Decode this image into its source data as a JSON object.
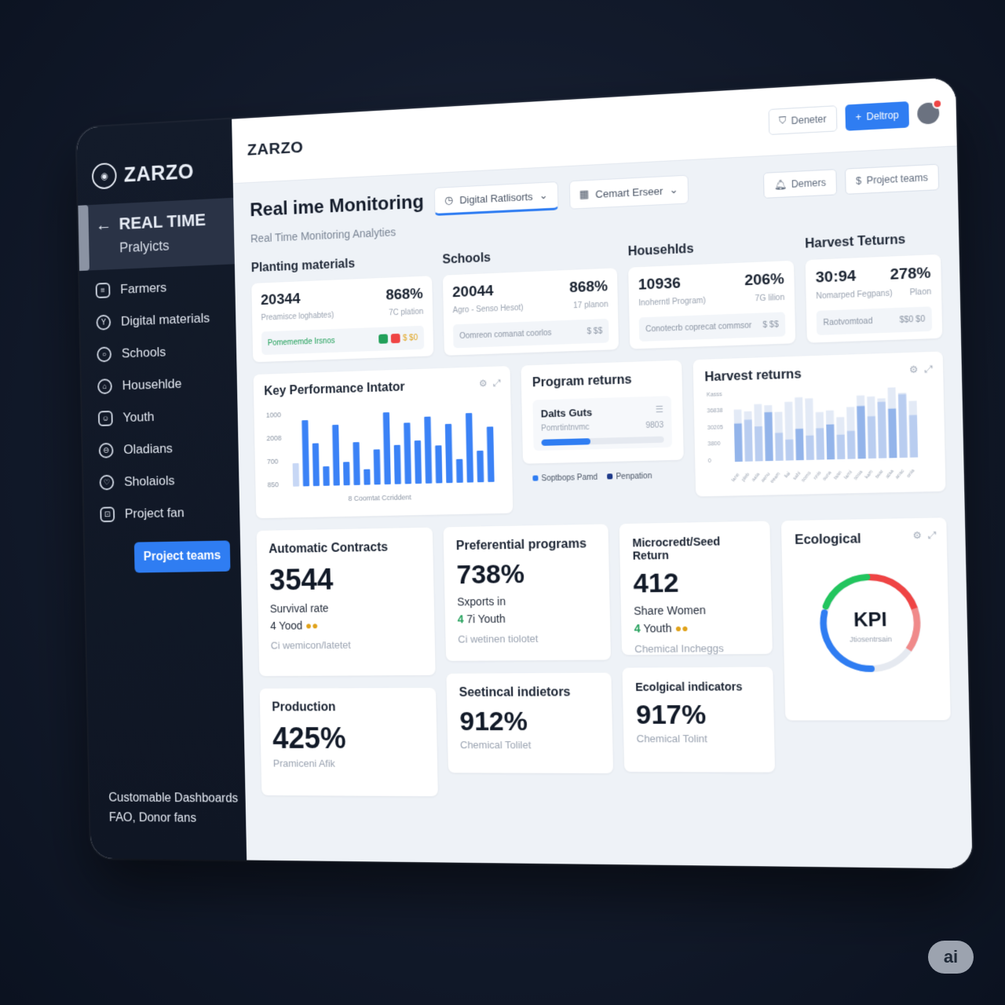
{
  "sidebar": {
    "brand": "ZARZO",
    "active": {
      "title": "REAL TIME",
      "subtitle": "Pralyicts"
    },
    "items": [
      {
        "label": "Farmers",
        "icon": "farmer-icon"
      },
      {
        "label": "Digital materials",
        "icon": "digital-icon"
      },
      {
        "label": "Schools",
        "icon": "school-icon"
      },
      {
        "label": "Househlde",
        "icon": "household-icon"
      },
      {
        "label": "Youth",
        "icon": "youth-icon"
      },
      {
        "label": "Oladians",
        "icon": "oladians-icon"
      },
      {
        "label": "Sholaiols",
        "icon": "heart-icon"
      },
      {
        "label": "Project fan",
        "icon": "project-icon"
      }
    ],
    "team_button": "Project teams",
    "footer": {
      "line1": "Customable Dashboards",
      "line2": "FAO, Donor fans"
    }
  },
  "topbar": {
    "brand": "ZARZO",
    "ghost_button": "Deneter",
    "primary_button": "Deltrop"
  },
  "header": {
    "title": "Real ime Monitoring",
    "dropdown1": "Digital Ratlisorts",
    "dropdown2": "Cemart Erseer",
    "action1": "Demers",
    "action2": "Project teams",
    "subtitle": "Real Time Monitoring Analyties"
  },
  "sections": [
    "Planting materials",
    "Schools",
    "Househlds",
    "Harvest Teturns"
  ],
  "stats": [
    {
      "value": "20344",
      "pct": "868%",
      "label": "Preamisce loghabtes)",
      "sub": "7C plation",
      "footer": "Pomememde Irsnos",
      "footer_right": "$ $0"
    },
    {
      "value": "20044",
      "pct": "868%",
      "label": "Agro - Senso Hesot)",
      "sub": "17 planon",
      "footer": "Oomreon comanat coorlos",
      "footer_right": "$ $$"
    },
    {
      "value": "10936",
      "pct": "206%",
      "label": "Inoherntl Program)",
      "sub": "7G lilion",
      "footer": "Conotecrb coprecat commsor",
      "footer_right": "$ $$"
    },
    {
      "value": "30:94",
      "pct": "278%",
      "label": "Nomarped Fegpans)",
      "sub": "Plaon",
      "footer": "Raotvomtoad",
      "footer_right": "$$0 $0"
    }
  ],
  "kpi": {
    "title": "Key Performance Intator",
    "caption": "8 Coomtat Ccriddent"
  },
  "program": {
    "title": "Program returns",
    "inner_title": "Dalts Guts",
    "inner_sub": "Pomrtintnvmc",
    "inner_val": "9803",
    "progress": 0.4,
    "legend1": "Soptbops Pamd",
    "legend2": "Penpation"
  },
  "harvest": {
    "title": "Harvest returns"
  },
  "cards": {
    "auto": {
      "title": "Automatic Contracts",
      "value": "3544",
      "line1": "Survival rate",
      "line2_num": "4",
      "line2_text": "Yood",
      "muted": "Ci wemicon/latetet"
    },
    "production": {
      "title": "Production",
      "value": "425%",
      "muted": "Pramiceni Afik"
    },
    "pref": {
      "title": "Preferential programs",
      "value": "738%",
      "line1": "Sxports in",
      "line2_num": "4",
      "line2_text": "7i Youth",
      "muted": "Ci wetinen tiolotet"
    },
    "seet": {
      "title": "Seetincal indietors",
      "value": "912%",
      "muted": "Chemical Tolilet"
    },
    "micro": {
      "title": "Microcredt/Seed Return",
      "value": "412",
      "line1": "Share Women",
      "line2_num": "4",
      "line2_text": "Youth",
      "muted": "Chemical Incheggs"
    },
    "ecoind": {
      "title": "Ecolgical indicators",
      "value": "917%",
      "muted": "Chemical Tolint"
    },
    "eco": {
      "title": "Ecological",
      "gauge_label": "KPI",
      "gauge_sub": "Jtiosentrsain"
    }
  },
  "chart_data": [
    {
      "type": "bar",
      "name_ref": "kpi",
      "yticks": [
        "1000",
        "2008",
        "700",
        "850"
      ],
      "values": [
        0.3,
        0.85,
        0.55,
        0.25,
        0.78,
        0.3,
        0.55,
        0.2,
        0.45,
        0.92,
        0.5,
        0.78,
        0.55,
        0.85,
        0.48,
        0.75,
        0.3,
        0.88,
        0.4,
        0.7
      ]
    },
    {
      "type": "bar",
      "name_ref": "harvest",
      "yticks": [
        "Kasss",
        "36838",
        "30205",
        "3800",
        "0"
      ],
      "series": [
        {
          "name": "",
          "values": [
            0.75,
            0.72,
            0.82,
            0.8,
            0.7,
            0.84,
            0.9,
            0.88,
            0.68,
            0.7,
            0.6,
            0.74,
            0.9,
            0.88,
            0.85,
            1.0,
            0.92,
            0.8
          ]
        },
        {
          "name": "",
          "values": [
            0.55,
            0.6,
            0.5,
            0.7,
            0.4,
            0.3,
            0.45,
            0.35,
            0.45,
            0.5,
            0.35,
            0.4,
            0.75,
            0.6,
            0.8,
            0.7,
            0.9,
            0.6
          ]
        }
      ],
      "xticks": [
        "lane",
        "pleb",
        "aata",
        "aenu",
        "eeam",
        "liai",
        "sahi",
        "soms",
        "nnis",
        "suna",
        "taan",
        "larni",
        "soua",
        "kam",
        "twar",
        "ataa",
        "anac",
        "onia"
      ]
    }
  ],
  "colors": {
    "accent": "#2f7df2",
    "green": "#22a05a",
    "red": "#ef4444",
    "yellow": "#e0a21a"
  },
  "badge": "ai"
}
